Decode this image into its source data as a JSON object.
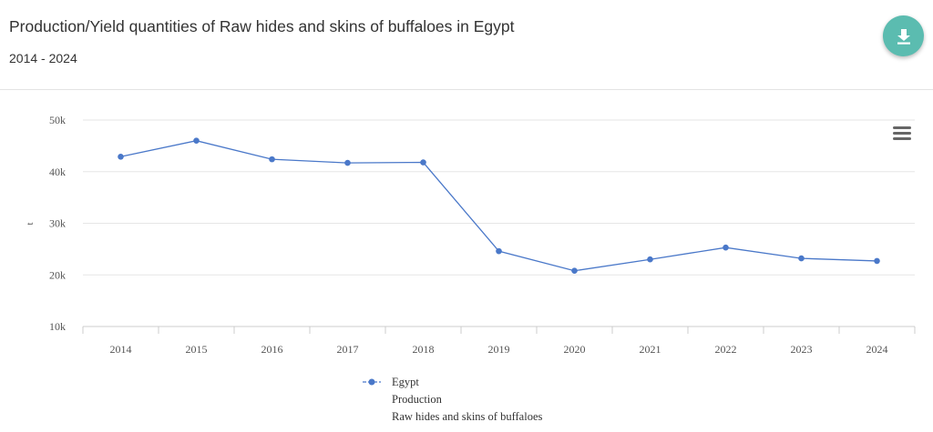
{
  "header": {
    "title": "Production/Yield quantities of Raw hides and skins of buffaloes in Egypt",
    "subtitle": "2014 - 2024",
    "download_icon": "download-icon"
  },
  "chart_menu_icon": "hamburger-menu-icon",
  "colors": {
    "accent": "#5bbcb0",
    "series": "#4a78c9",
    "grid": "#e6e6e6",
    "axis_text": "#555555"
  },
  "chart_data": {
    "type": "line",
    "title": "Production/Yield quantities of Raw hides and skins of buffaloes in Egypt",
    "subtitle": "2014 - 2024",
    "xlabel": "",
    "ylabel": "t",
    "ylim": [
      10000,
      50000
    ],
    "yticks": [
      10000,
      20000,
      30000,
      40000,
      50000
    ],
    "ytick_labels": [
      "10k",
      "20k",
      "30k",
      "40k",
      "50k"
    ],
    "categories": [
      "2014",
      "2015",
      "2016",
      "2017",
      "2018",
      "2019",
      "2020",
      "2021",
      "2022",
      "2023",
      "2024"
    ],
    "grid": true,
    "legend_position": "bottom-center",
    "series": [
      {
        "name": "Egypt",
        "legend_lines": [
          "Egypt",
          "Production",
          "Raw hides and skins of buffaloes"
        ],
        "color": "#4a78c9",
        "values": [
          42900,
          46000,
          42400,
          41700,
          41800,
          24600,
          20800,
          23000,
          25300,
          23200,
          22700
        ]
      }
    ]
  }
}
